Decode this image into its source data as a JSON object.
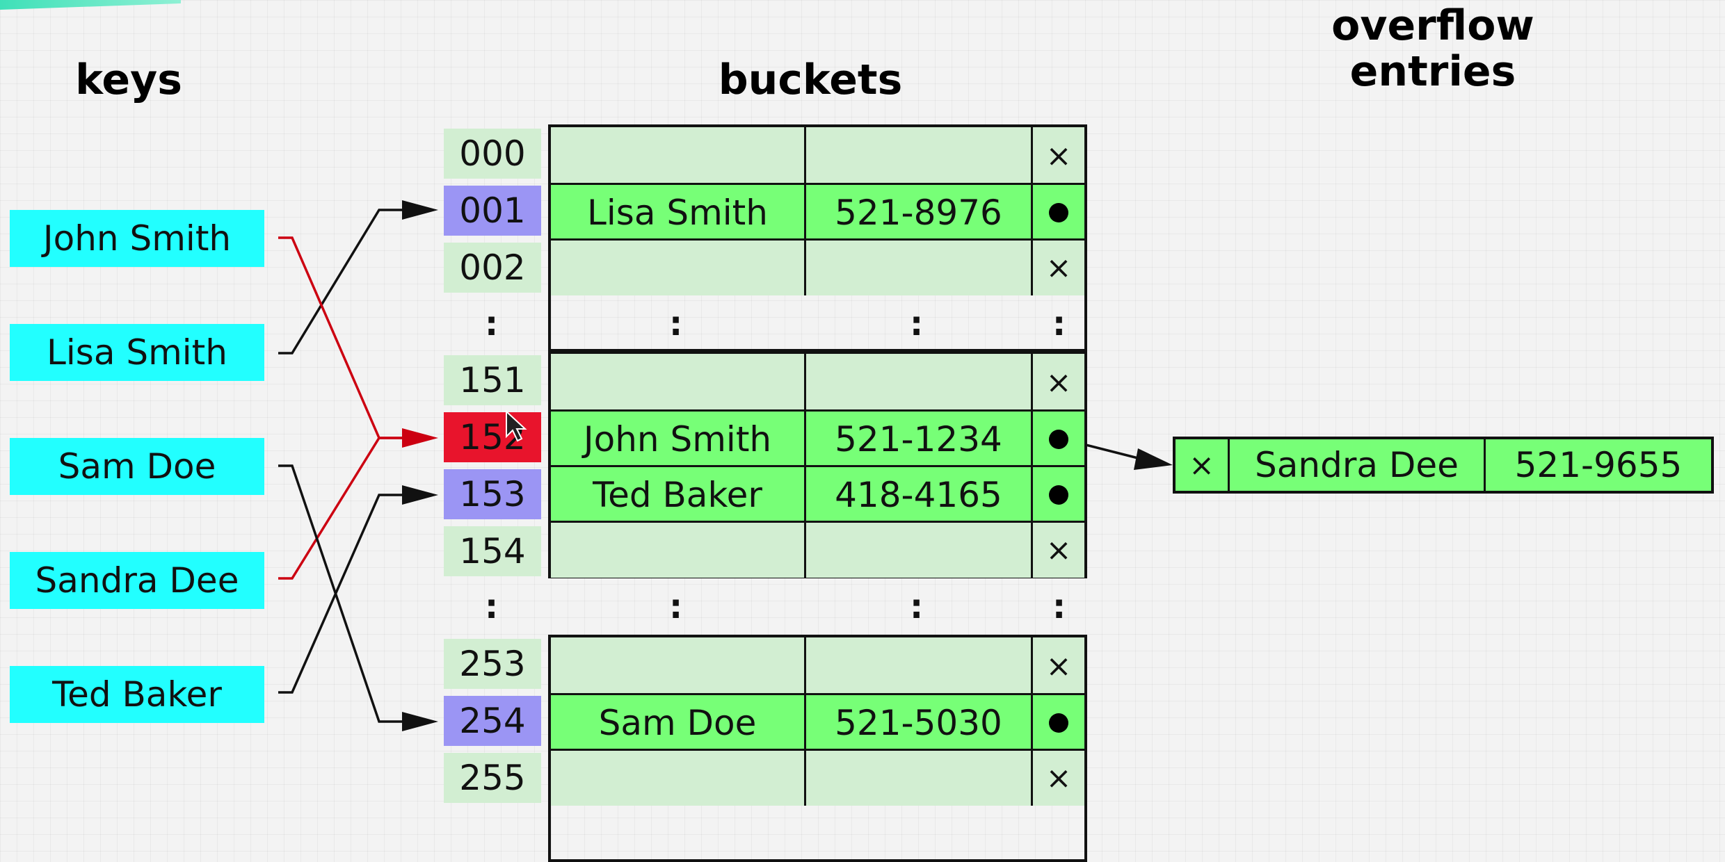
{
  "headings": {
    "keys": "keys",
    "buckets": "buckets",
    "overflow_line1": "overflow",
    "overflow_line2": "entries"
  },
  "keys": [
    "John Smith",
    "Lisa Smith",
    "Sam Doe",
    "Sandra Dee",
    "Ted Baker"
  ],
  "buckets": [
    {
      "index": "000",
      "name": "",
      "phone": "",
      "marker": "×"
    },
    {
      "index": "001",
      "name": "Lisa Smith",
      "phone": "521-8976",
      "marker": "●"
    },
    {
      "index": "002",
      "name": "",
      "phone": "",
      "marker": "×"
    },
    {
      "index": "151",
      "name": "",
      "phone": "",
      "marker": "×"
    },
    {
      "index": "152",
      "name": "John Smith",
      "phone": "521-1234",
      "marker": "●"
    },
    {
      "index": "153",
      "name": "Ted Baker",
      "phone": "418-4165",
      "marker": "●"
    },
    {
      "index": "154",
      "name": "",
      "phone": "",
      "marker": "×"
    },
    {
      "index": "253",
      "name": "",
      "phone": "",
      "marker": "×"
    },
    {
      "index": "254",
      "name": "Sam Doe",
      "phone": "521-5030",
      "marker": "●"
    },
    {
      "index": "255",
      "name": "",
      "phone": "",
      "marker": "×"
    }
  ],
  "ellipsis": ":",
  "overflow_entry": {
    "marker": "×",
    "name": "Sandra Dee",
    "phone": "521-9655"
  },
  "colors": {
    "key_fill": "#22ffff",
    "index_empty": "#d2eed2",
    "index_used": "#9b95f4",
    "index_collision": "#e8142c",
    "slot_empty": "#d2eed2",
    "slot_full": "#77ff77",
    "link_normal": "#111111",
    "link_collision": "#cc0011"
  }
}
